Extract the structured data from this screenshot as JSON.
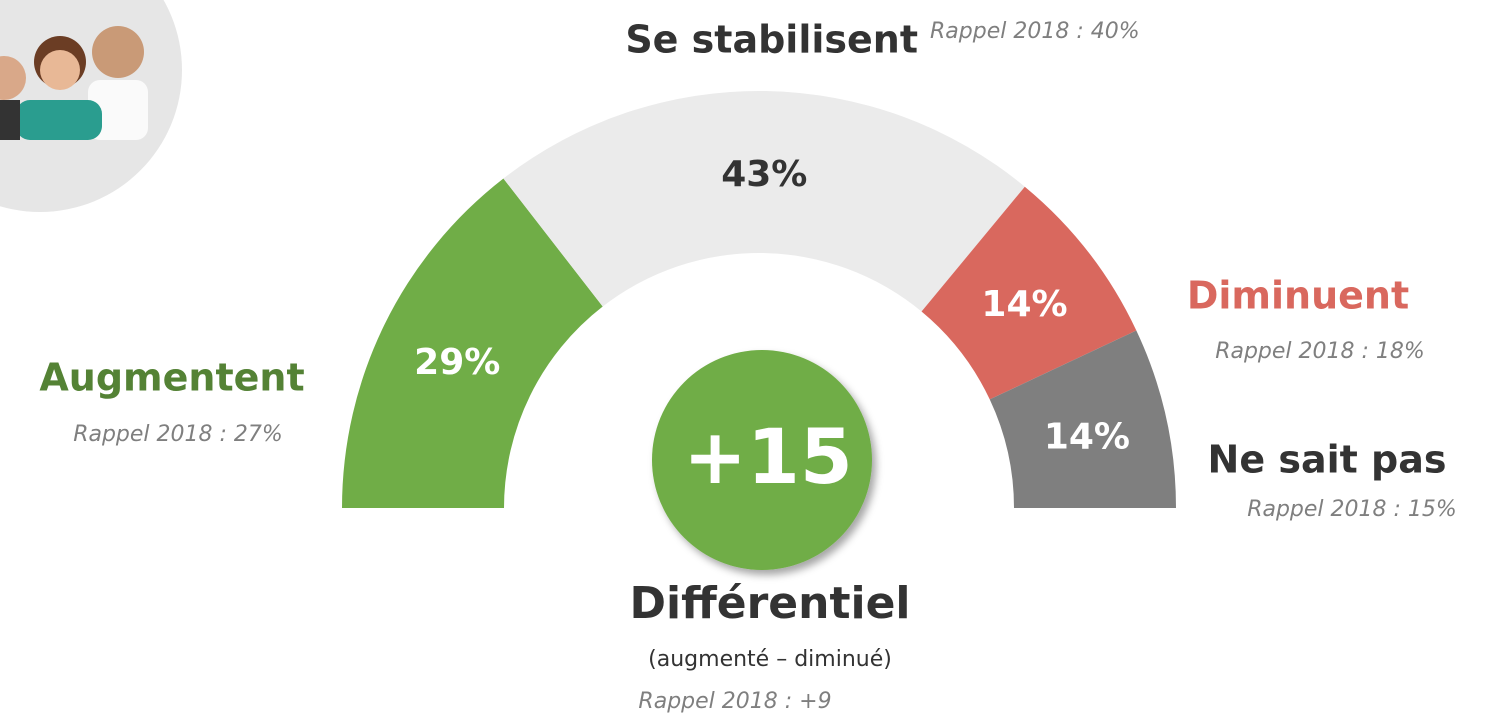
{
  "chart_data": {
    "type": "half-donut",
    "categories": [
      "Augmentent",
      "Se stabilisent",
      "Diminuent",
      "Ne sait pas"
    ],
    "values": [
      29,
      43,
      14,
      14
    ],
    "value_labels": [
      "29%",
      "43%",
      "14%",
      "14%"
    ],
    "colors": [
      "#70ad47",
      "#ebebeb",
      "#d9685e",
      "#7f7f7f"
    ],
    "recall_labels": [
      "Rappel 2018 : 27%",
      "Rappel 2018 : 40%",
      "Rappel 2018 : 18%",
      "Rappel 2018 : 15%"
    ],
    "differential": {
      "value": 15,
      "label": "+15"
    },
    "differential_title": "Différentiel",
    "differential_subtitle": "(augmenté – diminué)",
    "differential_recall": "Rappel 2018 : +9"
  }
}
